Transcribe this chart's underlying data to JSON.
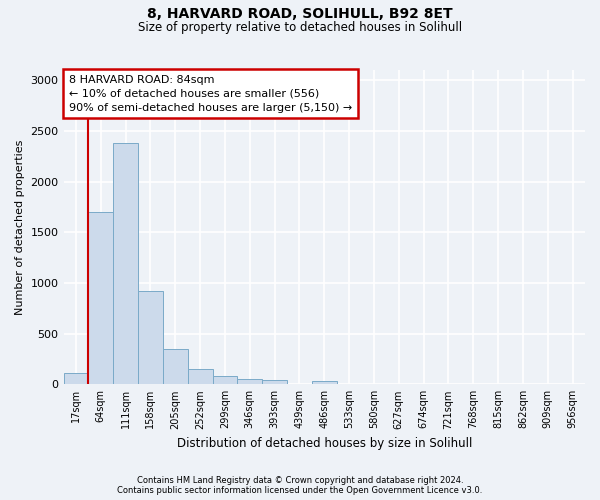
{
  "title1": "8, HARVARD ROAD, SOLIHULL, B92 8ET",
  "title2": "Size of property relative to detached houses in Solihull",
  "xlabel": "Distribution of detached houses by size in Solihull",
  "ylabel": "Number of detached properties",
  "bar_color": "#ccdaeb",
  "bar_edge_color": "#7aaac8",
  "categories": [
    "17sqm",
    "64sqm",
    "111sqm",
    "158sqm",
    "205sqm",
    "252sqm",
    "299sqm",
    "346sqm",
    "393sqm",
    "439sqm",
    "486sqm",
    "533sqm",
    "580sqm",
    "627sqm",
    "674sqm",
    "721sqm",
    "768sqm",
    "815sqm",
    "862sqm",
    "909sqm",
    "956sqm"
  ],
  "values": [
    110,
    1700,
    2380,
    920,
    350,
    150,
    80,
    55,
    40,
    0,
    35,
    0,
    0,
    0,
    0,
    0,
    0,
    0,
    0,
    0,
    0
  ],
  "ylim": [
    0,
    3100
  ],
  "yticks": [
    0,
    500,
    1000,
    1500,
    2000,
    2500,
    3000
  ],
  "vline_x_index": 1,
  "vline_color": "#cc0000",
  "annotation_title": "8 HARVARD ROAD: 84sqm",
  "annotation_line1": "← 10% of detached houses are smaller (556)",
  "annotation_line2": "90% of semi-detached houses are larger (5,150) →",
  "annotation_box_facecolor": "#ffffff",
  "annotation_box_edgecolor": "#cc0000",
  "footnote1": "Contains HM Land Registry data © Crown copyright and database right 2024.",
  "footnote2": "Contains public sector information licensed under the Open Government Licence v3.0.",
  "fig_facecolor": "#eef2f7",
  "plot_facecolor": "#eef2f7",
  "grid_color": "#ffffff",
  "grid_linewidth": 1.2
}
